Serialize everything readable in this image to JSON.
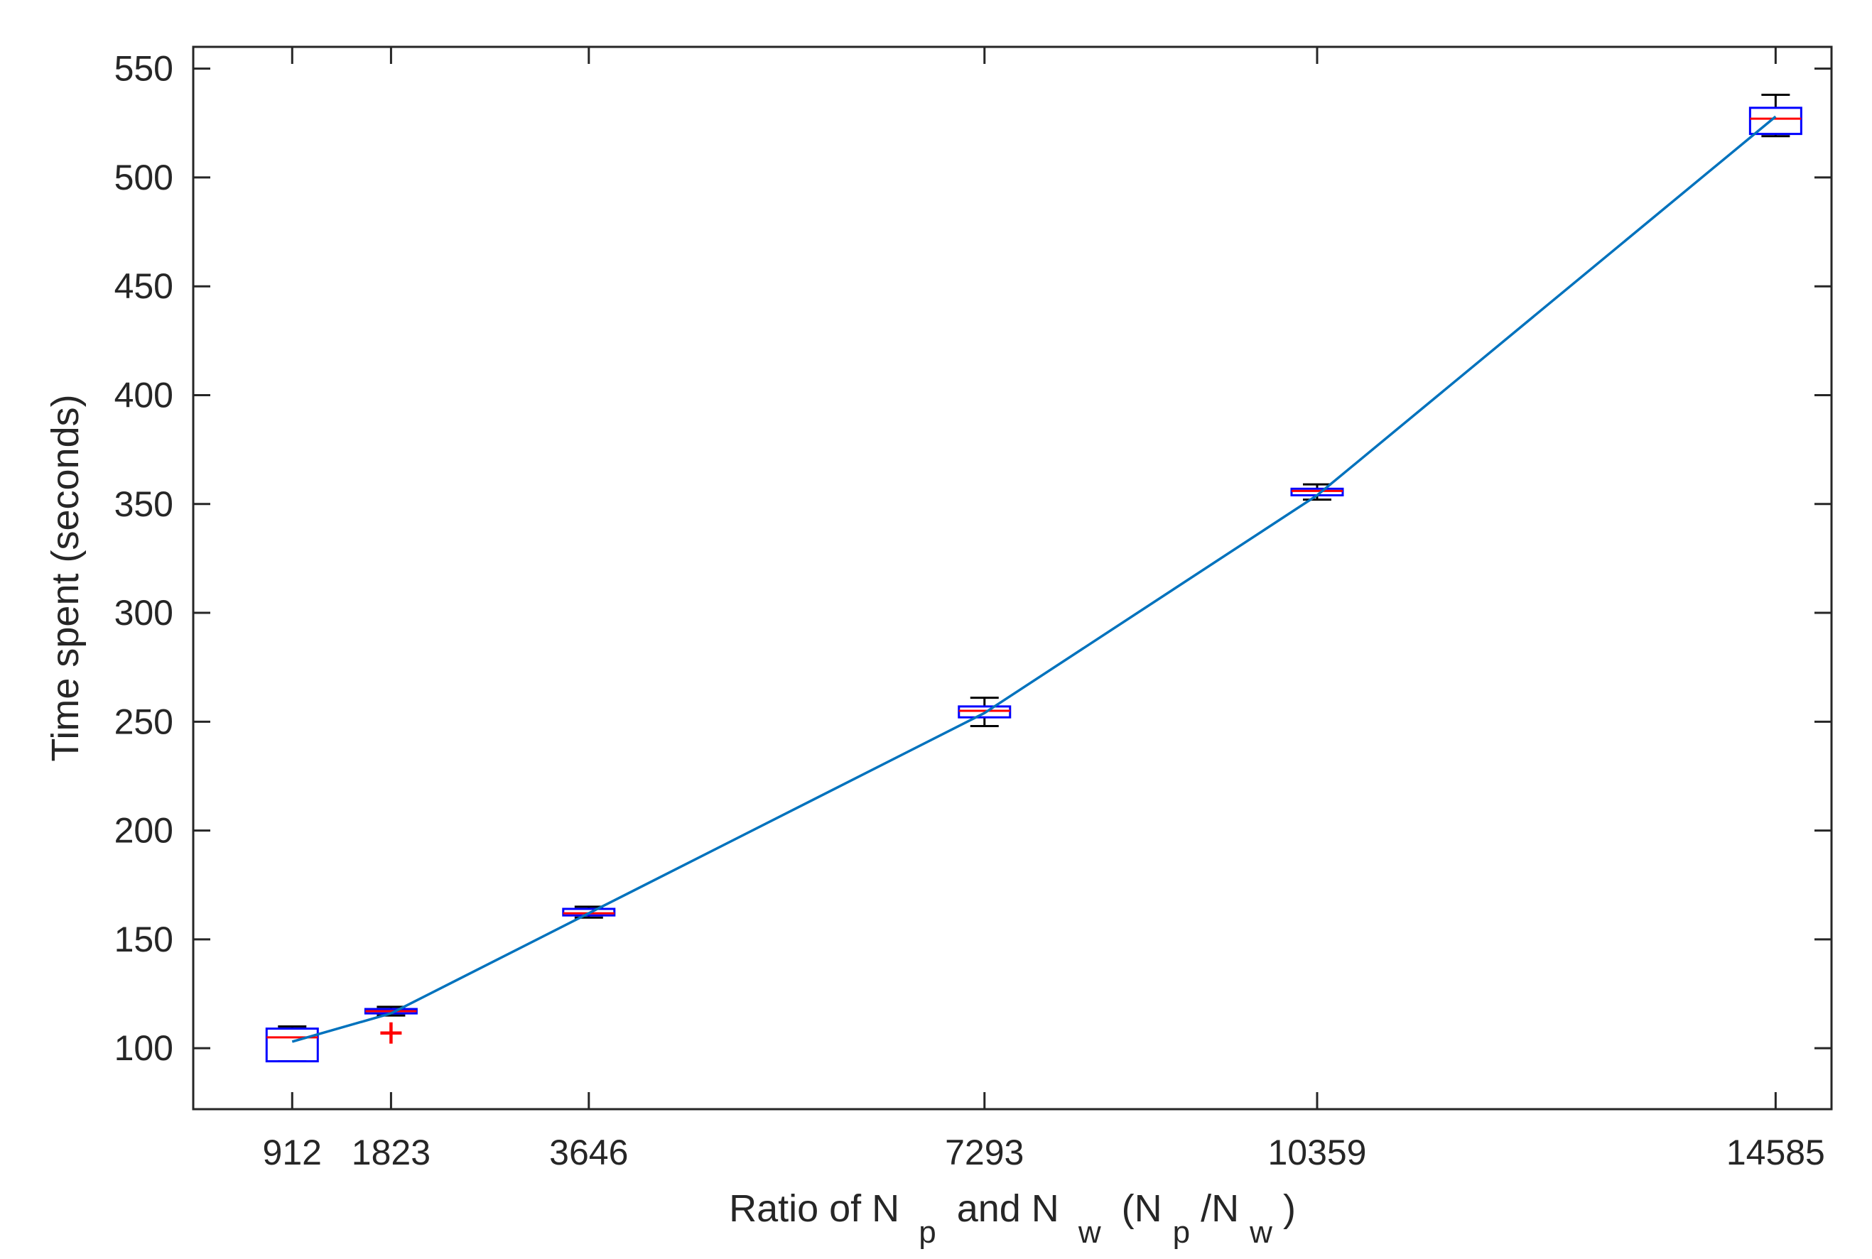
{
  "chart_data": {
    "type": "box",
    "title": "",
    "xlabel": {
      "prefix": "Ratio of N",
      "sub1": "p",
      "mid": "and N",
      "sub2": "w",
      "paren_open": "(N",
      "sub3": "p",
      "slash": "/N",
      "sub4": "w",
      "paren_close": ")"
    },
    "ylabel": "Time spent (seconds)",
    "xlim": [
      0,
      15100
    ],
    "ylim": [
      72,
      560
    ],
    "x_ticks": [
      912,
      1823,
      3646,
      7293,
      10359,
      14585
    ],
    "x_tick_labels": [
      "912",
      "1823",
      "3646",
      "7293",
      "10359",
      "14585"
    ],
    "y_ticks": [
      100,
      150,
      200,
      250,
      300,
      350,
      400,
      450,
      500,
      550
    ],
    "y_tick_labels": [
      "100",
      "150",
      "200",
      "250",
      "300",
      "350",
      "400",
      "450",
      "500",
      "550"
    ],
    "grid": false,
    "boxes": [
      {
        "x": 912,
        "whisker_low": 94,
        "q1": 94,
        "median": 105,
        "q3": 109,
        "whisker_high": 110,
        "outliers": []
      },
      {
        "x": 1823,
        "whisker_low": 115,
        "q1": 116,
        "median": 117,
        "q3": 118,
        "whisker_high": 119,
        "outliers": [
          107
        ]
      },
      {
        "x": 3646,
        "whisker_low": 160,
        "q1": 161,
        "median": 162,
        "q3": 164,
        "whisker_high": 165,
        "outliers": []
      },
      {
        "x": 7293,
        "whisker_low": 248,
        "q1": 252,
        "median": 255,
        "q3": 257,
        "whisker_high": 261,
        "outliers": []
      },
      {
        "x": 10359,
        "whisker_low": 352,
        "q1": 354,
        "median": 356,
        "q3": 357,
        "whisker_high": 359,
        "outliers": []
      },
      {
        "x": 14585,
        "whisker_low": 519,
        "q1": 520,
        "median": 527,
        "q3": 532,
        "whisker_high": 538,
        "outliers": []
      }
    ],
    "trend_line": {
      "x": [
        912,
        1823,
        3646,
        7293,
        10359,
        14585
      ],
      "y": [
        103,
        116,
        162,
        254,
        354,
        528
      ]
    },
    "colors": {
      "box": "#0000ff",
      "median": "#ff0000",
      "whisker": "#000000",
      "outlier": "#ff0000",
      "trend": "#0072bd",
      "axis": "#262626"
    }
  }
}
